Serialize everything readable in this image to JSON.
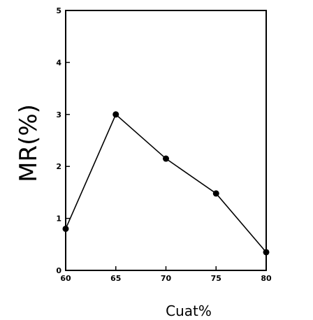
{
  "chart_data": {
    "type": "line",
    "title": "",
    "xlabel": "Cuat%",
    "ylabel": "MR(%)",
    "xlim": [
      60,
      80
    ],
    "ylim": [
      0,
      5
    ],
    "xticks": [
      "60",
      "65",
      "70",
      "75",
      "80"
    ],
    "yticks": [
      "0",
      "1",
      "2",
      "3",
      "4",
      "5"
    ],
    "grid": false,
    "series": [
      {
        "x": [
          60,
          65,
          70,
          75,
          80
        ],
        "values": [
          0.8,
          3.0,
          2.15,
          1.48,
          0.35
        ]
      }
    ]
  }
}
